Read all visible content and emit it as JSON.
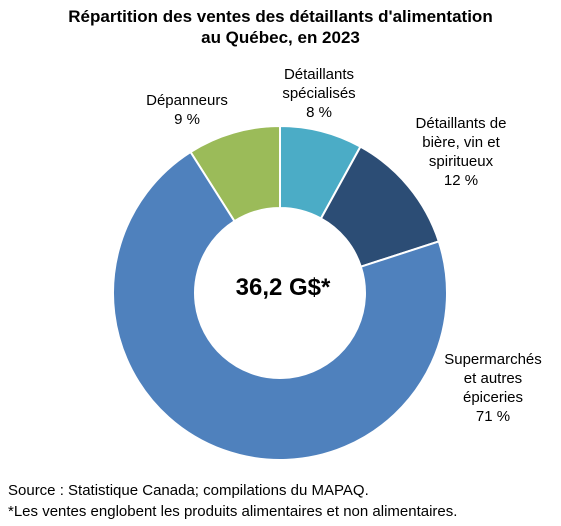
{
  "chart_data": {
    "type": "pie",
    "title_lines": [
      "Répartition des ventes des détaillants d'alimentation",
      "au Québec, en 2023"
    ],
    "center_label": "36,2 G$*",
    "slices": [
      {
        "label_lines": [
          "Supermarchés",
          "et autres",
          "épiceries"
        ],
        "value": 71,
        "value_label": "71 %",
        "color": "#4F81BD"
      },
      {
        "label_lines": [
          "Dépanneurs"
        ],
        "value": 9,
        "value_label": "9 %",
        "color": "#9BBB59"
      },
      {
        "label_lines": [
          "Détaillants",
          "spécialisés"
        ],
        "value": 8,
        "value_label": "8 %",
        "color": "#4BACC6"
      },
      {
        "label_lines": [
          "Détaillants de",
          "bière, vin et",
          "spiritueux"
        ],
        "value": 12,
        "value_label": "12 %",
        "color": "#2C4D75"
      }
    ]
  },
  "notes": {
    "source": "Source : Statistique Canada; compilations du MAPAQ.",
    "footnote": "*Les ventes englobent les produits alimentaires et non alimentaires."
  }
}
